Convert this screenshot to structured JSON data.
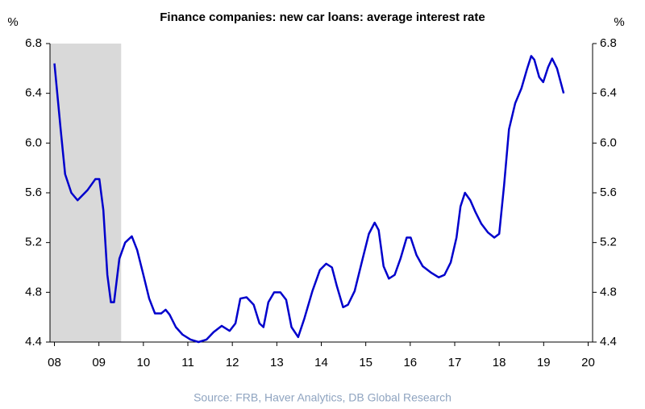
{
  "chart_data": {
    "type": "line",
    "title": "Finance companies: new car loans: average interest rate",
    "y_label": "%",
    "y2_label": "%",
    "source": "Source: FRB, Haver Analytics, DB Global Research",
    "xlim": [
      2007.9,
      2020.1
    ],
    "xticks": [
      {
        "value": 2008,
        "label": "08"
      },
      {
        "value": 2009,
        "label": "09"
      },
      {
        "value": 2010,
        "label": "10"
      },
      {
        "value": 2011,
        "label": "11"
      },
      {
        "value": 2012,
        "label": "12"
      },
      {
        "value": 2013,
        "label": "13"
      },
      {
        "value": 2014,
        "label": "14"
      },
      {
        "value": 2015,
        "label": "15"
      },
      {
        "value": 2016,
        "label": "16"
      },
      {
        "value": 2017,
        "label": "17"
      },
      {
        "value": 2018,
        "label": "18"
      },
      {
        "value": 2019,
        "label": "19"
      },
      {
        "value": 2020,
        "label": "20"
      }
    ],
    "ylim": [
      4.4,
      6.8
    ],
    "yticks": [
      4.4,
      4.8,
      5.2,
      5.6,
      {
        "value": 6,
        "label": "6.0"
      },
      6.4,
      6.8
    ],
    "y2lim": [
      4.4,
      6.8
    ],
    "y2ticks": [
      4.4,
      4.8,
      5.2,
      5.6,
      {
        "value": 6,
        "label": "6.0"
      },
      6.4,
      6.8
    ],
    "shaded_region": [
      2007.9,
      2009.5
    ],
    "shade_color": "#d9d9d9",
    "x": [
      2008.0,
      2008.14,
      2008.24,
      2008.38,
      2008.52,
      2008.74,
      2008.92,
      2009.01,
      2009.1,
      2009.19,
      2009.27,
      2009.34,
      2009.46,
      2009.59,
      2009.74,
      2009.86,
      2010.0,
      2010.13,
      2010.26,
      2010.4,
      2010.5,
      2010.59,
      2010.73,
      2010.88,
      2011.06,
      2011.24,
      2011.42,
      2011.58,
      2011.76,
      2011.94,
      2012.07,
      2012.18,
      2012.32,
      2012.48,
      2012.61,
      2012.7,
      2012.81,
      2012.94,
      2013.08,
      2013.21,
      2013.33,
      2013.48,
      2013.62,
      2013.8,
      2013.97,
      2014.11,
      2014.24,
      2014.35,
      2014.49,
      2014.6,
      2014.75,
      2014.93,
      2015.07,
      2015.2,
      2015.29,
      2015.4,
      2015.52,
      2015.65,
      2015.78,
      2015.92,
      2016.01,
      2016.14,
      2016.28,
      2016.46,
      2016.64,
      2016.77,
      2016.91,
      2017.04,
      2017.13,
      2017.23,
      2017.35,
      2017.46,
      2017.6,
      2017.75,
      2017.89,
      2018.0,
      2018.11,
      2018.22,
      2018.36,
      2018.5,
      2018.63,
      2018.72,
      2018.79,
      2018.9,
      2018.99,
      2019.1,
      2019.19,
      2019.3,
      2019.45
    ],
    "series": [
      {
        "name": "Average interest rate",
        "color": "#0000cc",
        "values": [
          6.64,
          6.11,
          5.75,
          5.6,
          5.54,
          5.62,
          5.71,
          5.71,
          5.46,
          4.94,
          4.72,
          4.72,
          5.07,
          5.2,
          5.25,
          5.14,
          4.94,
          4.75,
          4.63,
          4.63,
          4.66,
          4.62,
          4.52,
          4.46,
          4.42,
          4.4,
          4.42,
          4.48,
          4.53,
          4.49,
          4.55,
          4.75,
          4.76,
          4.7,
          4.55,
          4.52,
          4.72,
          4.8,
          4.8,
          4.74,
          4.52,
          4.44,
          4.59,
          4.81,
          4.98,
          5.03,
          5.0,
          4.85,
          4.68,
          4.7,
          4.81,
          5.07,
          5.27,
          5.36,
          5.3,
          5.01,
          4.91,
          4.94,
          5.07,
          5.24,
          5.24,
          5.1,
          5.01,
          4.96,
          4.92,
          4.94,
          5.04,
          5.24,
          5.49,
          5.6,
          5.54,
          5.45,
          5.35,
          5.28,
          5.24,
          5.27,
          5.66,
          6.11,
          6.32,
          6.44,
          6.6,
          6.7,
          6.67,
          6.53,
          6.49,
          6.61,
          6.68,
          6.6,
          6.4
        ]
      }
    ]
  }
}
